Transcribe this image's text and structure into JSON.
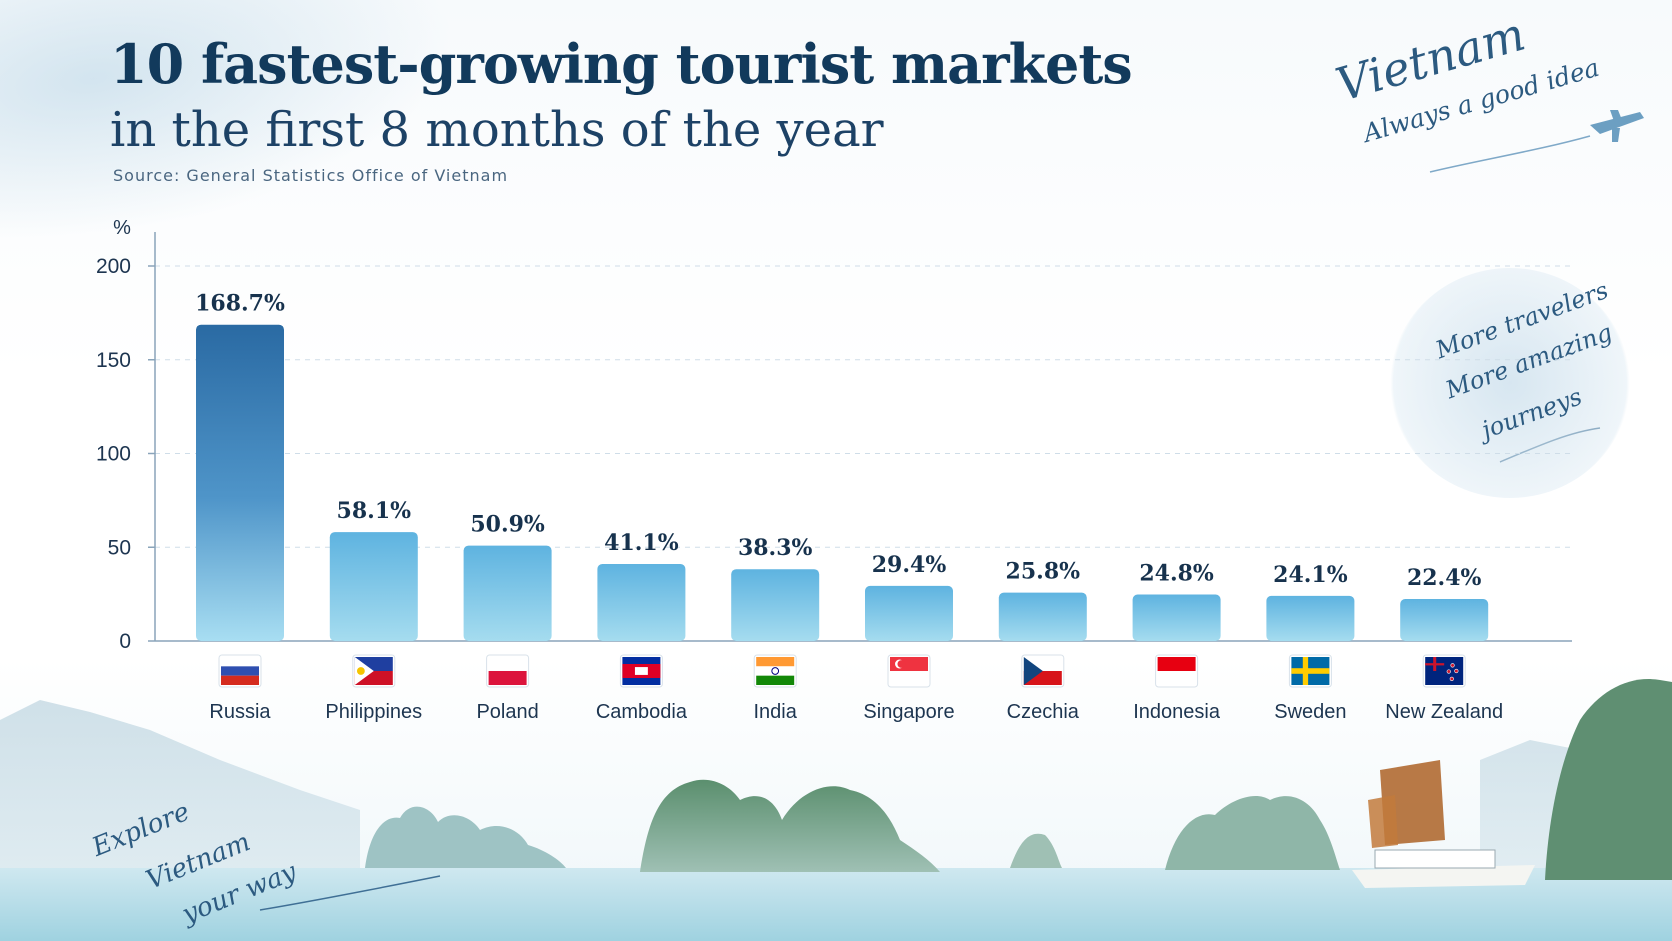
{
  "header": {
    "title": "10 fastest-growing tourist markets",
    "subtitle": "in the first 8 months of the year",
    "source": "Source: General Statistics Office of Vietnam"
  },
  "branding": {
    "vietnam": "Vietnam",
    "tagline": "Always a good idea",
    "circle_line1": "More travelers",
    "circle_line2": "More amazing",
    "circle_line3": "journeys",
    "explore_line1": "Explore",
    "explore_line2": "Vietnam",
    "explore_line3": "your way"
  },
  "colors": {
    "title": "#123a5c",
    "bar_top": "#2e6ea6",
    "bar_light": "#6cc0e6",
    "bar_bottom": "#a8def2"
  },
  "chart_data": {
    "type": "bar",
    "ylabel": "%",
    "ylim": [
      0,
      200
    ],
    "yticks": [
      0,
      50,
      100,
      150,
      200
    ],
    "grid": true,
    "categories": [
      "Russia",
      "Philippines",
      "Poland",
      "Cambodia",
      "India",
      "Singapore",
      "Czechia",
      "Indonesia",
      "Sweden",
      "New Zealand"
    ],
    "values": [
      168.7,
      58.1,
      50.9,
      41.1,
      38.3,
      29.4,
      25.8,
      24.8,
      24.1,
      22.4
    ],
    "data_labels": [
      "168.7%",
      "58.1%",
      "50.9%",
      "41.1%",
      "38.3%",
      "29.4%",
      "25.8%",
      "24.8%",
      "24.1%",
      "22.4%"
    ],
    "flags": [
      "russia-flag-icon",
      "philippines-flag-icon",
      "poland-flag-icon",
      "cambodia-flag-icon",
      "india-flag-icon",
      "singapore-flag-icon",
      "czechia-flag-icon",
      "indonesia-flag-icon",
      "sweden-flag-icon",
      "new-zealand-flag-icon"
    ]
  }
}
